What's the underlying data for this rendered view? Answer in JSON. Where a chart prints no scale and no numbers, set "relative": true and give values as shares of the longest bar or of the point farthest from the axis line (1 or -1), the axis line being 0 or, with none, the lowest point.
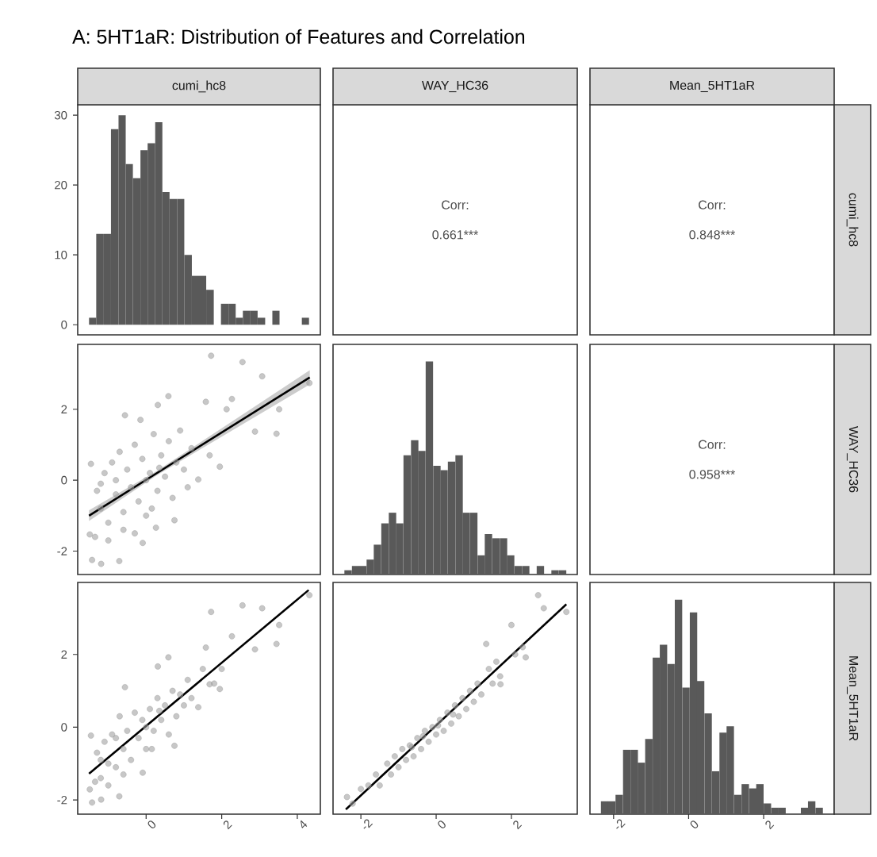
{
  "chart_data": [
    {
      "type": "other",
      "title": "A: 5HT1aR: Distribution of Features and Correlation"
    },
    {
      "type": "histogram",
      "title": "cumi_hc8",
      "color": "#595959",
      "bins": [
        -1.51,
        -1.32,
        -1.12,
        -0.93,
        -0.73,
        -0.54,
        -0.35,
        -0.15,
        0.04,
        0.24,
        0.43,
        0.62,
        0.82,
        1.01,
        1.21,
        1.4,
        1.59,
        1.79,
        1.98,
        2.18,
        2.37,
        2.56,
        2.76,
        2.95,
        3.15,
        3.34,
        3.53,
        3.73,
        3.92,
        4.12,
        4.31
      ],
      "values": [
        1,
        13,
        13,
        28,
        30,
        23,
        21,
        25,
        26,
        29,
        19,
        18,
        18,
        10,
        7,
        7,
        5,
        0,
        3,
        3,
        1,
        2,
        2,
        1,
        0,
        2,
        0,
        0,
        0,
        1
      ],
      "xlim": [
        -1.81,
        4.61
      ],
      "ylim": [
        -1.45,
        31.5
      ],
      "yticks": [
        0,
        10,
        20,
        30
      ],
      "tick_labels": "y"
    },
    {
      "type": "other",
      "title": "WAY_HC36",
      "annotations": [
        "Corr:",
        "0.661***"
      ]
    },
    {
      "type": "other",
      "title": "Mean_5HT1aR",
      "y2label": "cumi_hc8",
      "annotations": [
        "Corr:",
        "0.848***"
      ]
    },
    {
      "type": "scatter",
      "xlim": [
        -1.81,
        4.61
      ],
      "ylim": [
        -2.66,
        3.83
      ],
      "yticks": [
        -2,
        0,
        2
      ],
      "tick_labels": "y",
      "series": [
        {
          "type": "scatter",
          "marker": "circle",
          "color": "#999999",
          "x": [
            1.72,
            2.55,
            3.07,
            4.32,
            3.52,
            3.45,
            2.88,
            2.27,
            1.58,
            0.59,
            0.31,
            -0.56,
            -0.15,
            -1.46,
            -1.49,
            -1.43,
            -1.19,
            -0.71,
            -0.09,
            0.26,
            0.75,
            1.38,
            1.95,
            1.68,
            2.13,
            -1.3,
            -1.2,
            -1.1,
            -1.0,
            -0.9,
            -0.8,
            -0.7,
            -0.6,
            -0.5,
            -0.4,
            -0.3,
            -0.2,
            -0.1,
            0,
            0.1,
            0.2,
            0.3,
            0.4,
            0.5,
            0.6,
            0.7,
            0.8,
            0.9,
            1.0,
            1.1,
            1.2,
            -1.35,
            -1.0,
            -0.6,
            -0.3,
            0.0,
            0.35,
            -0.8,
            -1.2,
            0.15
          ],
          "values": [
            3.51,
            3.33,
            2.93,
            2.74,
            2.0,
            1.31,
            1.37,
            2.29,
            2.21,
            2.37,
            2.12,
            1.83,
            1.7,
            0.46,
            -1.53,
            -2.25,
            -2.36,
            -2.28,
            -1.77,
            -1.34,
            -1.13,
            0.02,
            0.38,
            0.7,
            2.0,
            -0.3,
            -0.8,
            0.2,
            -1.2,
            0.5,
            -0.4,
            0.8,
            -0.9,
            0.3,
            -0.2,
            1.0,
            -0.6,
            0.6,
            -1.0,
            0.2,
            1.3,
            -0.3,
            0.7,
            0.1,
            1.1,
            -0.5,
            0.5,
            1.4,
            0.3,
            -0.2,
            0.9,
            -1.6,
            -1.7,
            -1.4,
            -1.5,
            0.0,
            0.35,
            0.0,
            -0.1,
            -0.8
          ]
        },
        {
          "type": "line",
          "color": "#000000",
          "x": [
            -1.51,
            0.3,
            4.33
          ],
          "values": [
            -1.0,
            0.21,
            2.9
          ],
          "lower": [
            -1.15,
            0.15,
            2.7
          ],
          "upper": [
            -0.85,
            0.27,
            3.1
          ]
        }
      ]
    },
    {
      "type": "bar",
      "relative": true,
      "color": "#595959",
      "xlim": [
        -2.74,
        3.75
      ],
      "tick_labels": false,
      "x": [
        -2.34,
        -2.14,
        -1.95,
        -1.75,
        -1.56,
        -1.36,
        -1.16,
        -0.97,
        -0.77,
        -0.57,
        -0.38,
        -0.18,
        0.02,
        0.21,
        0.41,
        0.61,
        0.8,
        1.0,
        1.2,
        1.39,
        1.59,
        1.79,
        1.98,
        2.18,
        2.38,
        2.57,
        2.77,
        2.97,
        3.16,
        3.36
      ],
      "values": [
        0.02,
        0.04,
        0.04,
        0.07,
        0.14,
        0.24,
        0.29,
        0.24,
        0.56,
        0.63,
        0.58,
        1,
        0.51,
        0.49,
        0.53,
        0.56,
        0.29,
        0.29,
        0.09,
        0.19,
        0.17,
        0.17,
        0.09,
        0.04,
        0.04,
        0,
        0.04,
        0,
        0.02,
        0.02
      ]
    },
    {
      "type": "other",
      "y2label": "WAY_HC36",
      "annotations": [
        "Corr:",
        "0.958***"
      ]
    },
    {
      "type": "scatter",
      "xlim": [
        -1.81,
        4.61
      ],
      "xticks": [
        0,
        2,
        4
      ],
      "ylim": [
        -2.39,
        3.98
      ],
      "yticks": [
        -2,
        0,
        2
      ],
      "series": [
        {
          "type": "scatter",
          "marker": "circle",
          "color": "#999999",
          "x": [
            1.72,
            2.55,
            3.07,
            4.32,
            3.52,
            3.45,
            2.88,
            2.27,
            1.58,
            0.59,
            0.31,
            -0.56,
            -1.46,
            -1.49,
            -1.43,
            -1.19,
            -0.71,
            -0.09,
            0.75,
            1.38,
            1.95,
            1.68,
            -1.3,
            -1.2,
            -1.1,
            -1.0,
            -0.9,
            -0.8,
            -0.7,
            -0.6,
            -0.5,
            -0.4,
            -0.3,
            -0.2,
            -0.1,
            0,
            0.1,
            0.2,
            0.3,
            0.4,
            0.5,
            0.6,
            0.7,
            0.8,
            0.9,
            1.0,
            1.1,
            1.2,
            -1.35,
            -1.0,
            -0.6,
            0.0,
            0.35,
            -0.8,
            -1.2,
            0.15,
            1.5,
            1.8,
            2.0
          ],
          "values": [
            3.17,
            3.35,
            3.27,
            3.63,
            2.81,
            2.29,
            2.14,
            2.5,
            2.19,
            1.92,
            1.67,
            1.1,
            -0.23,
            -1.71,
            -2.07,
            -1.99,
            -1.9,
            -1.25,
            -0.51,
            0.55,
            1.05,
            1.18,
            -0.7,
            -1.4,
            -0.4,
            -1.0,
            -0.2,
            -1.1,
            0.3,
            -0.6,
            -0.1,
            -0.9,
            0.4,
            -0.3,
            0.2,
            -0.6,
            0.5,
            -0.1,
            0.8,
            0.2,
            0.6,
            -0.2,
            1.0,
            0.3,
            0.9,
            0.6,
            1.3,
            0.8,
            -1.5,
            -1.6,
            -1.3,
            0.0,
            0.45,
            -0.3,
            -0.9,
            -0.6,
            1.6,
            1.2,
            1.6
          ]
        },
        {
          "type": "line",
          "color": "#000000",
          "x": [
            -1.51,
            4.3
          ],
          "values": [
            -1.28,
            3.77
          ]
        }
      ]
    },
    {
      "type": "scatter",
      "xlim": [
        -2.74,
        3.75
      ],
      "xticks": [
        -2,
        0,
        2
      ],
      "ylim": [
        -2.39,
        3.98
      ],
      "tick_labels": "x",
      "series": [
        {
          "type": "scatter",
          "marker": "circle",
          "color": "#999999",
          "x": [
            2.71,
            3.46,
            2.86,
            2.0,
            1.33,
            2.38,
            1.71,
            -2.37,
            -2.22,
            -2.0,
            -1.8,
            -1.6,
            -1.5,
            -1.3,
            -1.2,
            -1.1,
            -1.0,
            -0.9,
            -0.8,
            -0.7,
            -0.6,
            -0.5,
            -0.4,
            -0.3,
            -0.2,
            -0.1,
            0,
            0.1,
            0.2,
            0.3,
            0.4,
            0.5,
            0.6,
            0.7,
            0.8,
            0.9,
            1.0,
            1.1,
            1.2,
            1.4,
            1.5,
            1.6,
            1.7,
            2.1,
            2.3,
            -0.35,
            0.05,
            -0.65,
            0.45
          ],
          "values": [
            3.63,
            3.17,
            3.27,
            2.81,
            2.29,
            1.92,
            1.18,
            -1.92,
            -2.1,
            -1.7,
            -1.6,
            -1.3,
            -1.6,
            -1.0,
            -1.3,
            -0.8,
            -1.1,
            -0.6,
            -0.9,
            -0.5,
            -0.8,
            -0.3,
            -0.6,
            -0.1,
            -0.4,
            0.0,
            -0.2,
            0.2,
            -0.1,
            0.4,
            0.1,
            0.6,
            0.3,
            0.8,
            0.5,
            1.0,
            0.7,
            1.2,
            0.9,
            1.6,
            1.2,
            1.8,
            1.4,
            2.0,
            2.2,
            -0.25,
            0.05,
            -0.55,
            0.35
          ]
        },
        {
          "type": "line",
          "color": "#000000",
          "x": [
            -2.4,
            3.46
          ],
          "values": [
            -2.26,
            3.38
          ]
        }
      ]
    },
    {
      "type": "bar",
      "relative": true,
      "color": "#595959",
      "xlim": [
        -2.63,
        3.88
      ],
      "xticks": [
        -2,
        0,
        2
      ],
      "y2label": "Mean_5HT1aR",
      "tick_labels": "x",
      "x": [
        -2.24,
        -2.05,
        -1.85,
        -1.65,
        -1.45,
        -1.26,
        -1.06,
        -0.86,
        -0.67,
        -0.47,
        -0.27,
        -0.07,
        0.13,
        0.32,
        0.52,
        0.72,
        0.92,
        1.11,
        1.31,
        1.51,
        1.71,
        1.9,
        2.1,
        2.3,
        2.49,
        2.69,
        2.89,
        3.09,
        3.28,
        3.48
      ],
      "values": [
        0.06,
        0.06,
        0.09,
        0.3,
        0.3,
        0.24,
        0.35,
        0.73,
        0.79,
        0.7,
        1,
        0.59,
        0.94,
        0.62,
        0.47,
        0.2,
        0.38,
        0.41,
        0.09,
        0.14,
        0.12,
        0.14,
        0.05,
        0.03,
        0.03,
        0,
        0,
        0.03,
        0.06,
        0.03
      ]
    }
  ]
}
